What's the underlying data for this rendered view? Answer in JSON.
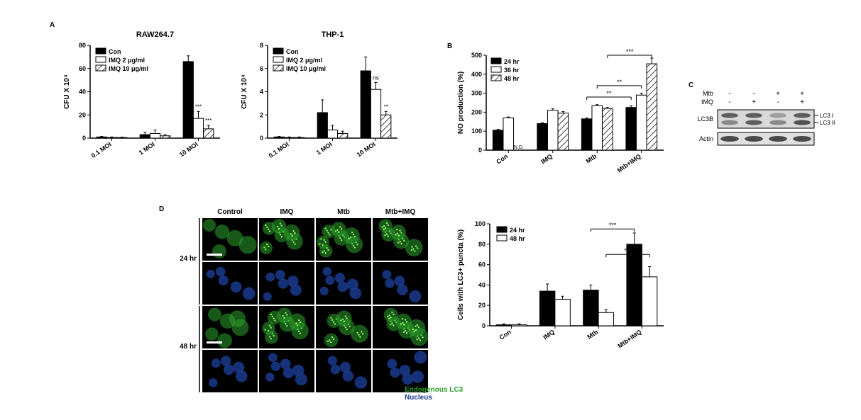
{
  "labels": {
    "A": "A",
    "B": "B",
    "C": "C",
    "D": "D"
  },
  "panelA": {
    "charts": [
      {
        "title": "RAW264.7",
        "ylabel": "CFU X 10⁴",
        "ylim": [
          0,
          80
        ],
        "yticks": [
          0,
          20,
          40,
          60,
          80
        ],
        "categories": [
          "0.1 MOI",
          "1 MOI",
          "10 MOI"
        ],
        "series": [
          {
            "name": "Con",
            "fill": "#000000",
            "hatch": false,
            "values": [
              1,
              3,
              66
            ],
            "errors": [
              0.5,
              2,
              5
            ]
          },
          {
            "name": "IMQ 2 μg/ml",
            "fill": "#ffffff",
            "hatch": false,
            "values": [
              0.5,
              4,
              17
            ],
            "errors": [
              0.5,
              3,
              6
            ]
          },
          {
            "name": "IMQ 10 μg/ml",
            "fill": "#ffffff",
            "hatch": true,
            "values": [
              0.5,
              2,
              8
            ],
            "errors": [
              0.3,
              1,
              3
            ]
          }
        ],
        "annotations": [
          {
            "group": 2,
            "bar": 1,
            "text": "***"
          },
          {
            "group": 2,
            "bar": 2,
            "text": "***"
          }
        ]
      },
      {
        "title": "THP-1",
        "ylabel": "CFU X 10⁴",
        "ylim": [
          0,
          8
        ],
        "yticks": [
          0,
          2,
          4,
          6,
          8
        ],
        "categories": [
          "0.1 MOI",
          "1 MOI",
          "10 MOI"
        ],
        "series": [
          {
            "name": "Con",
            "fill": "#000000",
            "hatch": false,
            "values": [
              0.1,
              2.2,
              5.8
            ],
            "errors": [
              0.05,
              1.1,
              1.2
            ]
          },
          {
            "name": "IMQ 2 μg/ml",
            "fill": "#ffffff",
            "hatch": false,
            "values": [
              0.05,
              0.7,
              4.2
            ],
            "errors": [
              0.05,
              0.4,
              0.6
            ]
          },
          {
            "name": "IMQ 10 μg/ml",
            "fill": "#ffffff",
            "hatch": true,
            "values": [
              0.05,
              0.4,
              2.0
            ],
            "errors": [
              0.05,
              0.2,
              0.3
            ]
          }
        ],
        "annotations": [
          {
            "group": 2,
            "bar": 1,
            "text": "ns"
          },
          {
            "group": 2,
            "bar": 2,
            "text": "**"
          }
        ]
      }
    ]
  },
  "panelB": {
    "ylabel": "NO production (%)",
    "ylim": [
      0,
      500
    ],
    "yticks": [
      0,
      100,
      200,
      300,
      400,
      500
    ],
    "categories": [
      "Con",
      "IMQ",
      "Mtb",
      "Mtb+IMQ"
    ],
    "series": [
      {
        "name": "24 hr",
        "fill": "#000000",
        "hatch": false,
        "values": [
          105,
          140,
          165,
          225
        ],
        "errors": [
          5,
          5,
          5,
          8
        ]
      },
      {
        "name": "36 hr",
        "fill": "#ffffff",
        "hatch": false,
        "values": [
          170,
          210,
          235,
          290
        ],
        "errors": [
          5,
          8,
          5,
          10
        ]
      },
      {
        "name": "48 hr",
        "fill": "#ffffff",
        "hatch": true,
        "values": [
          0,
          195,
          220,
          455
        ],
        "errors": [
          0,
          8,
          5,
          30
        ]
      }
    ],
    "nd_label": "N.D.",
    "sig_bars": [
      {
        "from": 2,
        "to": 3,
        "bar": 0,
        "text": "**",
        "y": 280
      },
      {
        "from": 2,
        "to": 3,
        "bar": 1,
        "text": "**",
        "y": 340
      },
      {
        "from": 2,
        "to": 3,
        "bar": 2,
        "text": "***",
        "y": 500
      }
    ]
  },
  "panelC": {
    "headers": [
      "Mtb",
      "IMQ"
    ],
    "lanes": [
      [
        "-",
        "-"
      ],
      [
        "-",
        "+"
      ],
      [
        "+",
        "-"
      ],
      [
        "+",
        "+"
      ]
    ],
    "rows": [
      {
        "label": "LC3B",
        "sublabels": [
          "LC3 I",
          "LC3 II"
        ],
        "band_color": "#4a4a4a",
        "bg": "#d8d8d8"
      },
      {
        "label": "Actin",
        "band_color": "#3a3a3a",
        "bg": "#e0e0e0"
      }
    ]
  },
  "panelD": {
    "col_headers": [
      "Control",
      "IMQ",
      "Mtb",
      "Mtb+IMQ"
    ],
    "row_headers": [
      "24 hr",
      "48 hr"
    ],
    "channels": [
      {
        "name": "Endogenous LC3",
        "color": "#2ca02c"
      },
      {
        "name": "Nucleus",
        "color": "#1a3a8c"
      }
    ],
    "chart": {
      "ylabel": "Cells with LC3+ puncta (%)",
      "ylim": [
        0,
        100
      ],
      "yticks": [
        0,
        20,
        40,
        60,
        80,
        100
      ],
      "categories": [
        "Con",
        "IMQ",
        "Mtb",
        "Mtb+IMQ"
      ],
      "series": [
        {
          "name": "24 hr",
          "fill": "#000000",
          "values": [
            1,
            34,
            35,
            80
          ],
          "errors": [
            1,
            7,
            5,
            11
          ]
        },
        {
          "name": "48 hr",
          "fill": "#ffffff",
          "values": [
            1,
            26,
            13,
            48
          ],
          "errors": [
            1,
            3,
            3,
            10
          ]
        }
      ],
      "sig_bars": [
        {
          "from": 2,
          "to": 3,
          "text": "***",
          "y": 95
        },
        {
          "from": 2,
          "to": 3,
          "text": "***",
          "y": 70
        }
      ]
    }
  },
  "style": {
    "axis_color": "#000000",
    "hatch_color": "#000000",
    "title_fontsize": 11,
    "axis_fontsize": 10,
    "tick_fontsize": 9,
    "bg": "#ffffff"
  }
}
